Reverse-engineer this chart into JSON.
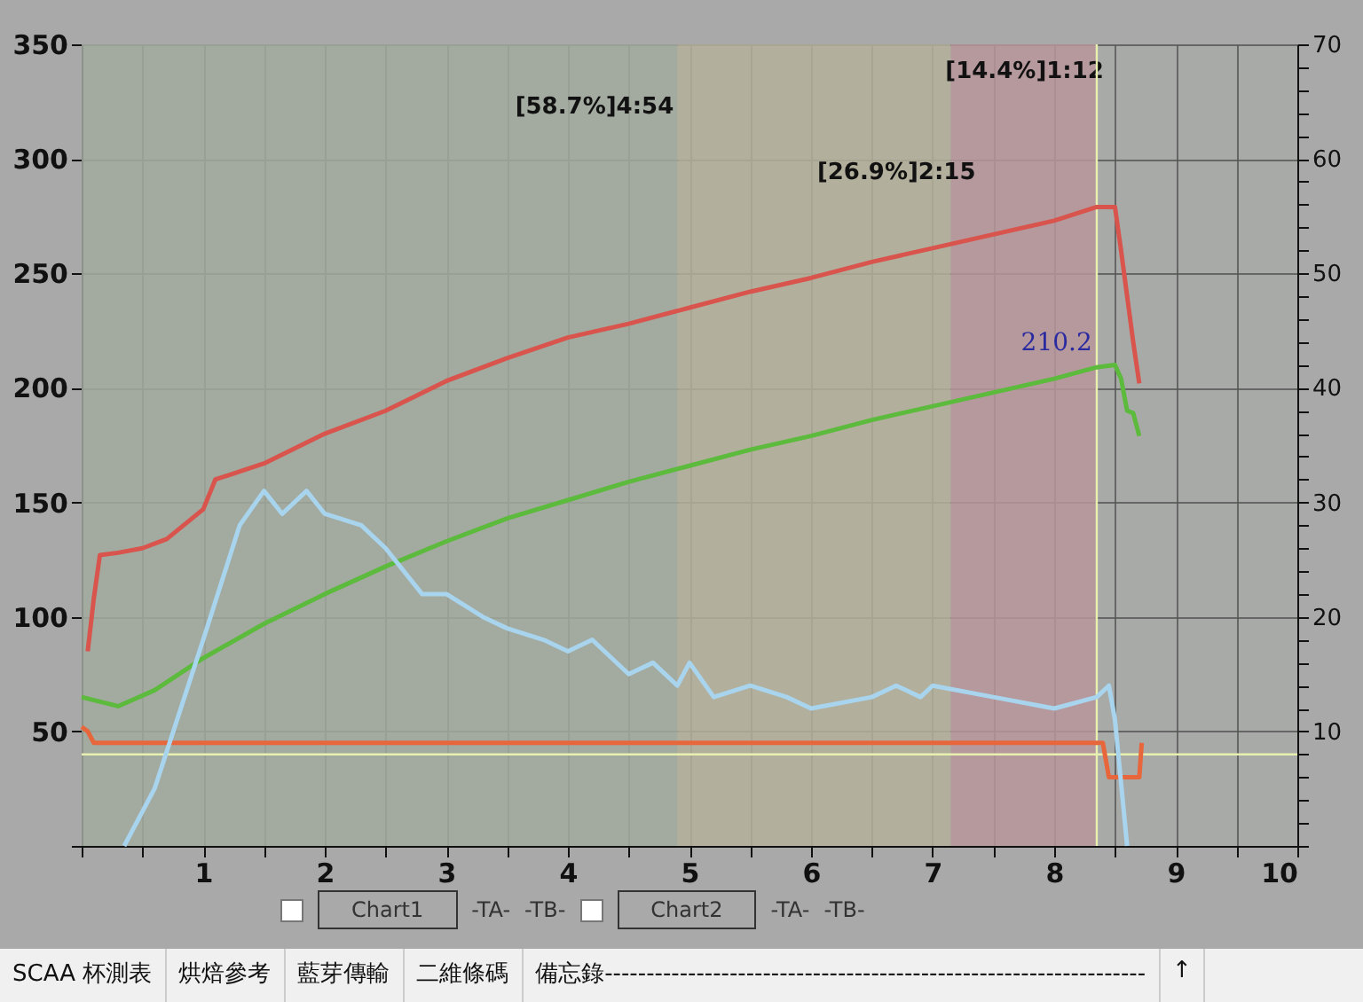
{
  "chart_data": {
    "type": "line",
    "xlim": [
      0,
      10
    ],
    "xticks": [
      {
        "value": 0,
        "label": null
      },
      {
        "value": 0.5,
        "label": null
      },
      1,
      {
        "value": 1.5,
        "label": null
      },
      2,
      {
        "value": 2.5,
        "label": null
      },
      3,
      {
        "value": 3.5,
        "label": null
      },
      4,
      {
        "value": 4.5,
        "label": null
      },
      5,
      {
        "value": 5.5,
        "label": null
      },
      6,
      {
        "value": 6.5,
        "label": null
      },
      7,
      {
        "value": 7.5,
        "label": null
      },
      8,
      {
        "value": 8.5,
        "label": null
      },
      9,
      {
        "value": 9.5,
        "label": null
      },
      10
    ],
    "ylim": [
      0,
      350
    ],
    "yticks": [
      {
        "value": 0,
        "label": null
      },
      50,
      100,
      150,
      200,
      250,
      300,
      350
    ],
    "y2lim": [
      0,
      70
    ],
    "y2ticks": [
      {
        "value": 0,
        "label": null
      },
      {
        "value": 2,
        "label": null
      },
      {
        "value": 4,
        "label": null
      },
      {
        "value": 6,
        "label": null
      },
      {
        "value": 8,
        "label": null
      },
      10,
      {
        "value": 12,
        "label": null
      },
      {
        "value": 14,
        "label": null
      },
      {
        "value": 16,
        "label": null
      },
      {
        "value": 18,
        "label": null
      },
      20,
      {
        "value": 22,
        "label": null
      },
      {
        "value": 24,
        "label": null
      },
      {
        "value": 26,
        "label": null
      },
      {
        "value": 28,
        "label": null
      },
      30,
      {
        "value": 32,
        "label": null
      },
      {
        "value": 34,
        "label": null
      },
      {
        "value": 36,
        "label": null
      },
      {
        "value": 38,
        "label": null
      },
      40,
      {
        "value": 42,
        "label": null
      },
      {
        "value": 44,
        "label": null
      },
      {
        "value": 46,
        "label": null
      },
      {
        "value": 48,
        "label": null
      },
      50,
      {
        "value": 52,
        "label": null
      },
      {
        "value": 54,
        "label": null
      },
      {
        "value": 56,
        "label": null
      },
      {
        "value": 58,
        "label": null
      },
      60,
      {
        "value": 62,
        "label": null
      },
      {
        "value": 64,
        "label": null
      },
      {
        "value": 66,
        "label": null
      },
      {
        "value": 68,
        "label": null
      },
      70
    ],
    "grid": true,
    "marker": "none",
    "line_style": "solid",
    "bands": [
      {
        "axis": "x",
        "from": 0,
        "to": 4.9,
        "label": "[58.7%]4:54",
        "color": "#a2aa9f"
      },
      {
        "axis": "x",
        "from": 4.9,
        "to": 7.15,
        "label": "[26.9%]2:15",
        "color": "#b5b09b"
      },
      {
        "axis": "x",
        "from": 7.15,
        "to": 8.35,
        "label": "[14.4%]1:12",
        "color": "#b8979b"
      }
    ],
    "ref_lines": [
      {
        "axis": "x",
        "value": 8.35,
        "color": "#e8f0b0"
      },
      {
        "axis": "y",
        "value": 40,
        "color": "#e8f0b0"
      }
    ],
    "series": [
      {
        "color": "#d8544c",
        "x": [
          0.05,
          0.1,
          0.15,
          0.3,
          0.5,
          0.7,
          1,
          1.1,
          1.5,
          2,
          2.5,
          3,
          3.5,
          4,
          4.5,
          5,
          5.5,
          6,
          6.5,
          7,
          7.5,
          8,
          8.35,
          8.5,
          8.55,
          8.6,
          8.65,
          8.7
        ],
        "values": [
          85,
          108,
          127,
          128,
          130,
          134,
          147,
          160,
          167,
          180,
          190,
          203,
          213,
          222,
          228,
          235,
          242,
          248,
          255,
          261,
          267,
          273,
          279,
          279,
          260,
          240,
          220,
          202
        ]
      },
      {
        "color": "#5cba3c",
        "x": [
          0,
          0.3,
          0.6,
          1,
          1.5,
          2,
          2.5,
          3,
          3.5,
          4,
          4.5,
          5,
          5.5,
          6,
          6.5,
          7,
          7.5,
          8,
          8.35,
          8.5,
          8.55,
          8.6,
          8.65,
          8.7
        ],
        "values": [
          65,
          61,
          68,
          82,
          97,
          110,
          122,
          133,
          143,
          151,
          159,
          166,
          173,
          179,
          186,
          192,
          198,
          204,
          209,
          210,
          204,
          190,
          189,
          179
        ]
      },
      {
        "color": "#e8663c",
        "x": [
          0,
          0.05,
          0.1,
          8.4,
          8.45,
          8.7,
          8.72
        ],
        "values": [
          52,
          50,
          45,
          45,
          30,
          30,
          45
        ]
      },
      {
        "color": "#a8d4ee",
        "axis": "y2",
        "x": [
          0.35,
          0.6,
          1,
          1.3,
          1.5,
          1.65,
          1.85,
          2,
          2.3,
          2.5,
          2.8,
          3,
          3.3,
          3.5,
          3.8,
          4,
          4.2,
          4.5,
          4.7,
          4.9,
          5,
          5.2,
          5.5,
          5.8,
          6,
          6.5,
          6.7,
          6.9,
          7,
          7.5,
          8,
          8.35,
          8.45,
          8.5,
          8.6
        ],
        "values": [
          0,
          5,
          18,
          28,
          31,
          29,
          31,
          29,
          28,
          26,
          22,
          22,
          20,
          19,
          18,
          17,
          18,
          15,
          16,
          14,
          16,
          13,
          14,
          13,
          12,
          13,
          14,
          13,
          14,
          13,
          12,
          13,
          14,
          11,
          0
        ]
      }
    ],
    "annotations": [
      {
        "text": "210.2",
        "x": 8.4,
        "y": 214
      },
      "Chart1",
      "-TA-",
      "-TB-",
      "Chart2",
      "-TA-",
      "-TB-",
      "SCAA 杯測表",
      "烘焙參考",
      "藍芽傳輸",
      "二維條碼",
      "備忘錄-----------------------------------------------------------------",
      "↑"
    ]
  }
}
